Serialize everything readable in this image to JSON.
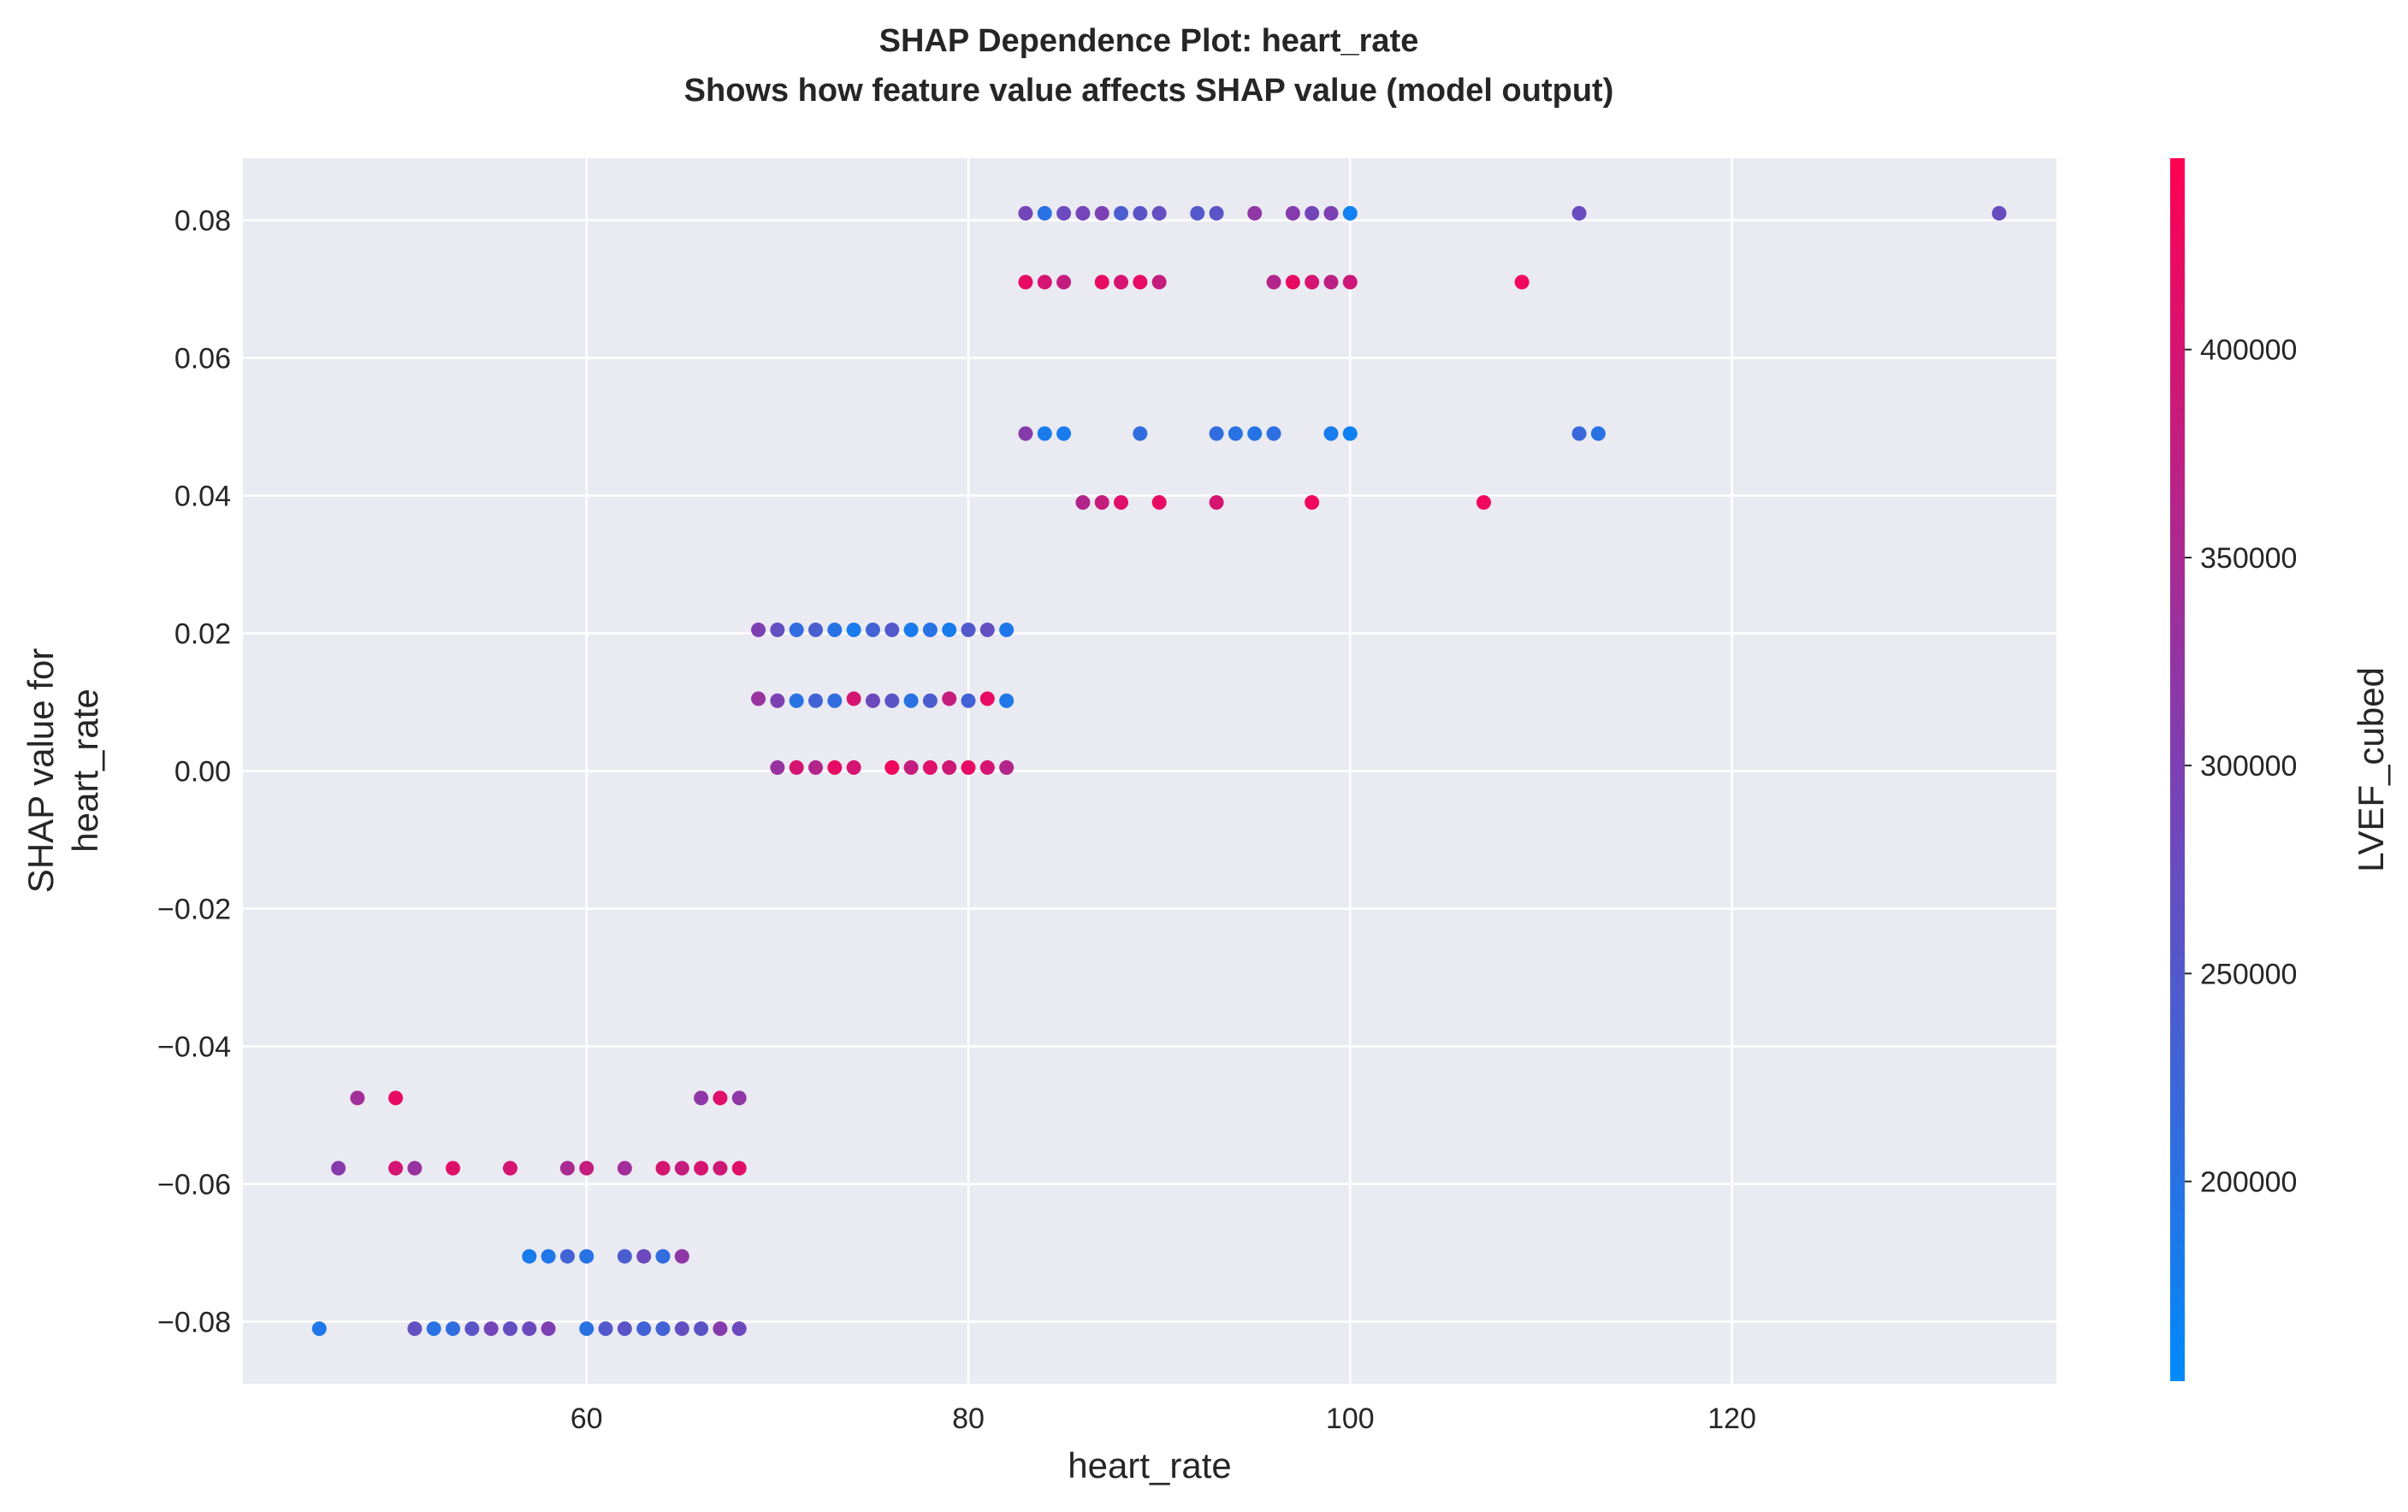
{
  "chart_data": {
    "type": "scatter",
    "title_line1": "SHAP Dependence Plot: heart_rate",
    "title_line2": "Shows how feature value affects SHAP value (model output)",
    "xlabel": "heart_rate",
    "ylabel_line1": "SHAP value for",
    "ylabel_line2": "heart_rate",
    "colorbar_label": "LVEF_cubed",
    "xlim": [
      42,
      137
    ],
    "ylim": [
      -0.089,
      0.089
    ],
    "x_ticks": [
      60,
      80,
      100,
      120
    ],
    "y_ticks": [
      -0.08,
      -0.06,
      -0.04,
      -0.02,
      0.0,
      0.02,
      0.04,
      0.06,
      0.08
    ],
    "x_tick_labels": [
      "60",
      "80",
      "100",
      "120"
    ],
    "y_tick_labels": [
      "−0.08",
      "−0.06",
      "−0.04",
      "−0.02",
      "0.00",
      "0.02",
      "0.04",
      "0.06",
      "0.08"
    ],
    "color_range": [
      152000,
      446000
    ],
    "colorbar_ticks": [
      200000,
      250000,
      300000,
      350000,
      400000
    ],
    "colorbar_tick_labels": [
      "200000",
      "250000",
      "300000",
      "350000",
      "400000"
    ],
    "colormap": [
      "#008afb",
      "#ff0052"
    ],
    "grid": true,
    "background": "#eaeaf2",
    "points": [
      {
        "x": 83,
        "y": 0.081,
        "c": 290000
      },
      {
        "x": 84,
        "y": 0.081,
        "c": 200000
      },
      {
        "x": 85,
        "y": 0.081,
        "c": 280000
      },
      {
        "x": 86,
        "y": 0.081,
        "c": 290000
      },
      {
        "x": 87,
        "y": 0.081,
        "c": 300000
      },
      {
        "x": 88,
        "y": 0.081,
        "c": 240000
      },
      {
        "x": 89,
        "y": 0.081,
        "c": 260000
      },
      {
        "x": 90,
        "y": 0.081,
        "c": 270000
      },
      {
        "x": 92,
        "y": 0.081,
        "c": 250000
      },
      {
        "x": 93,
        "y": 0.081,
        "c": 260000
      },
      {
        "x": 95,
        "y": 0.081,
        "c": 320000
      },
      {
        "x": 97,
        "y": 0.081,
        "c": 310000
      },
      {
        "x": 98,
        "y": 0.081,
        "c": 290000
      },
      {
        "x": 99,
        "y": 0.081,
        "c": 300000
      },
      {
        "x": 100,
        "y": 0.081,
        "c": 170000
      },
      {
        "x": 112,
        "y": 0.081,
        "c": 275000
      },
      {
        "x": 134,
        "y": 0.081,
        "c": 275000
      },
      {
        "x": 83,
        "y": 0.071,
        "c": 420000
      },
      {
        "x": 84,
        "y": 0.071,
        "c": 400000
      },
      {
        "x": 85,
        "y": 0.071,
        "c": 380000
      },
      {
        "x": 87,
        "y": 0.071,
        "c": 420000
      },
      {
        "x": 88,
        "y": 0.071,
        "c": 400000
      },
      {
        "x": 89,
        "y": 0.071,
        "c": 420000
      },
      {
        "x": 90,
        "y": 0.071,
        "c": 380000
      },
      {
        "x": 96,
        "y": 0.071,
        "c": 360000
      },
      {
        "x": 97,
        "y": 0.071,
        "c": 420000
      },
      {
        "x": 98,
        "y": 0.071,
        "c": 400000
      },
      {
        "x": 99,
        "y": 0.071,
        "c": 370000
      },
      {
        "x": 100,
        "y": 0.071,
        "c": 390000
      },
      {
        "x": 109,
        "y": 0.071,
        "c": 430000
      },
      {
        "x": 83,
        "y": 0.049,
        "c": 310000
      },
      {
        "x": 84,
        "y": 0.049,
        "c": 180000
      },
      {
        "x": 85,
        "y": 0.049,
        "c": 180000
      },
      {
        "x": 89,
        "y": 0.049,
        "c": 210000
      },
      {
        "x": 93,
        "y": 0.049,
        "c": 210000
      },
      {
        "x": 94,
        "y": 0.049,
        "c": 200000
      },
      {
        "x": 95,
        "y": 0.049,
        "c": 195000
      },
      {
        "x": 96,
        "y": 0.049,
        "c": 205000
      },
      {
        "x": 99,
        "y": 0.049,
        "c": 180000
      },
      {
        "x": 100,
        "y": 0.049,
        "c": 170000
      },
      {
        "x": 112,
        "y": 0.049,
        "c": 220000
      },
      {
        "x": 113,
        "y": 0.049,
        "c": 200000
      },
      {
        "x": 86,
        "y": 0.039,
        "c": 360000
      },
      {
        "x": 87,
        "y": 0.039,
        "c": 380000
      },
      {
        "x": 88,
        "y": 0.039,
        "c": 410000
      },
      {
        "x": 90,
        "y": 0.039,
        "c": 420000
      },
      {
        "x": 93,
        "y": 0.039,
        "c": 400000
      },
      {
        "x": 98,
        "y": 0.039,
        "c": 430000
      },
      {
        "x": 107,
        "y": 0.039,
        "c": 430000
      },
      {
        "x": 69,
        "y": 0.0205,
        "c": 300000
      },
      {
        "x": 70,
        "y": 0.0205,
        "c": 270000
      },
      {
        "x": 71,
        "y": 0.0205,
        "c": 210000
      },
      {
        "x": 72,
        "y": 0.0205,
        "c": 240000
      },
      {
        "x": 73,
        "y": 0.0205,
        "c": 200000
      },
      {
        "x": 74,
        "y": 0.0205,
        "c": 180000
      },
      {
        "x": 75,
        "y": 0.0205,
        "c": 230000
      },
      {
        "x": 76,
        "y": 0.0205,
        "c": 250000
      },
      {
        "x": 77,
        "y": 0.0205,
        "c": 180000
      },
      {
        "x": 78,
        "y": 0.0205,
        "c": 200000
      },
      {
        "x": 79,
        "y": 0.0205,
        "c": 180000
      },
      {
        "x": 80,
        "y": 0.0205,
        "c": 250000
      },
      {
        "x": 81,
        "y": 0.0205,
        "c": 270000
      },
      {
        "x": 82,
        "y": 0.0205,
        "c": 190000
      },
      {
        "x": 69,
        "y": 0.0105,
        "c": 330000
      },
      {
        "x": 70,
        "y": 0.0102,
        "c": 300000
      },
      {
        "x": 71,
        "y": 0.0102,
        "c": 200000
      },
      {
        "x": 72,
        "y": 0.0102,
        "c": 230000
      },
      {
        "x": 73,
        "y": 0.0102,
        "c": 210000
      },
      {
        "x": 74,
        "y": 0.0105,
        "c": 400000
      },
      {
        "x": 75,
        "y": 0.0102,
        "c": 280000
      },
      {
        "x": 76,
        "y": 0.0102,
        "c": 260000
      },
      {
        "x": 77,
        "y": 0.0102,
        "c": 200000
      },
      {
        "x": 78,
        "y": 0.0102,
        "c": 240000
      },
      {
        "x": 79,
        "y": 0.0105,
        "c": 380000
      },
      {
        "x": 80,
        "y": 0.0102,
        "c": 230000
      },
      {
        "x": 81,
        "y": 0.0105,
        "c": 420000
      },
      {
        "x": 82,
        "y": 0.0102,
        "c": 190000
      },
      {
        "x": 70,
        "y": 0.0005,
        "c": 330000
      },
      {
        "x": 71,
        "y": 0.0005,
        "c": 400000
      },
      {
        "x": 72,
        "y": 0.0005,
        "c": 360000
      },
      {
        "x": 73,
        "y": 0.0005,
        "c": 420000
      },
      {
        "x": 74,
        "y": 0.0005,
        "c": 400000
      },
      {
        "x": 76,
        "y": 0.0005,
        "c": 430000
      },
      {
        "x": 77,
        "y": 0.0005,
        "c": 380000
      },
      {
        "x": 78,
        "y": 0.0005,
        "c": 410000
      },
      {
        "x": 79,
        "y": 0.0005,
        "c": 390000
      },
      {
        "x": 80,
        "y": 0.0005,
        "c": 420000
      },
      {
        "x": 81,
        "y": 0.0005,
        "c": 400000
      },
      {
        "x": 82,
        "y": 0.0005,
        "c": 360000
      },
      {
        "x": 48,
        "y": -0.0475,
        "c": 340000
      },
      {
        "x": 50,
        "y": -0.0475,
        "c": 420000
      },
      {
        "x": 66,
        "y": -0.0475,
        "c": 320000
      },
      {
        "x": 67,
        "y": -0.0475,
        "c": 410000
      },
      {
        "x": 68,
        "y": -0.0475,
        "c": 320000
      },
      {
        "x": 47,
        "y": -0.0577,
        "c": 310000
      },
      {
        "x": 50,
        "y": -0.0577,
        "c": 400000
      },
      {
        "x": 51,
        "y": -0.0577,
        "c": 330000
      },
      {
        "x": 53,
        "y": -0.0577,
        "c": 410000
      },
      {
        "x": 56,
        "y": -0.0577,
        "c": 400000
      },
      {
        "x": 59,
        "y": -0.0577,
        "c": 350000
      },
      {
        "x": 60,
        "y": -0.0577,
        "c": 380000
      },
      {
        "x": 62,
        "y": -0.0577,
        "c": 340000
      },
      {
        "x": 64,
        "y": -0.0577,
        "c": 400000
      },
      {
        "x": 65,
        "y": -0.0577,
        "c": 380000
      },
      {
        "x": 66,
        "y": -0.0577,
        "c": 400000
      },
      {
        "x": 67,
        "y": -0.0577,
        "c": 390000
      },
      {
        "x": 68,
        "y": -0.0577,
        "c": 410000
      },
      {
        "x": 57,
        "y": -0.0705,
        "c": 180000
      },
      {
        "x": 58,
        "y": -0.0705,
        "c": 190000
      },
      {
        "x": 59,
        "y": -0.0705,
        "c": 230000
      },
      {
        "x": 60,
        "y": -0.0705,
        "c": 200000
      },
      {
        "x": 62,
        "y": -0.0705,
        "c": 240000
      },
      {
        "x": 63,
        "y": -0.0705,
        "c": 280000
      },
      {
        "x": 64,
        "y": -0.0705,
        "c": 210000
      },
      {
        "x": 65,
        "y": -0.0705,
        "c": 320000
      },
      {
        "x": 46,
        "y": -0.081,
        "c": 190000
      },
      {
        "x": 51,
        "y": -0.081,
        "c": 270000
      },
      {
        "x": 52,
        "y": -0.081,
        "c": 200000
      },
      {
        "x": 53,
        "y": -0.081,
        "c": 210000
      },
      {
        "x": 54,
        "y": -0.081,
        "c": 260000
      },
      {
        "x": 55,
        "y": -0.081,
        "c": 290000
      },
      {
        "x": 56,
        "y": -0.081,
        "c": 270000
      },
      {
        "x": 57,
        "y": -0.081,
        "c": 280000
      },
      {
        "x": 58,
        "y": -0.081,
        "c": 300000
      },
      {
        "x": 60,
        "y": -0.081,
        "c": 200000
      },
      {
        "x": 61,
        "y": -0.081,
        "c": 250000
      },
      {
        "x": 62,
        "y": -0.081,
        "c": 260000
      },
      {
        "x": 63,
        "y": -0.081,
        "c": 230000
      },
      {
        "x": 64,
        "y": -0.081,
        "c": 230000
      },
      {
        "x": 65,
        "y": -0.081,
        "c": 270000
      },
      {
        "x": 66,
        "y": -0.081,
        "c": 260000
      },
      {
        "x": 67,
        "y": -0.081,
        "c": 310000
      },
      {
        "x": 68,
        "y": -0.081,
        "c": 280000
      }
    ]
  }
}
